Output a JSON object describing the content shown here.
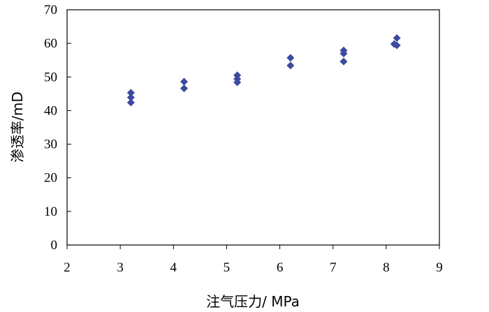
{
  "chart_data": {
    "type": "scatter",
    "title": "",
    "xlabel": "注气压力/ MPa",
    "ylabel": "渗透率/mD",
    "xlim": [
      2,
      9
    ],
    "ylim": [
      0,
      70
    ],
    "x_ticks": [
      "2",
      "3",
      "4",
      "5",
      "6",
      "7",
      "8",
      "9"
    ],
    "y_ticks": [
      "0",
      "10",
      "20",
      "30",
      "40",
      "50",
      "60",
      "70"
    ],
    "grid": false,
    "legend": "none",
    "marker": "diamond",
    "marker_color": "#3B4A9E",
    "series": [
      {
        "points": [
          {
            "x": 3.2,
            "y": 45.3
          },
          {
            "x": 3.2,
            "y": 43.9
          },
          {
            "x": 3.2,
            "y": 42.4
          },
          {
            "x": 4.2,
            "y": 48.6
          },
          {
            "x": 4.2,
            "y": 46.6
          },
          {
            "x": 5.2,
            "y": 50.5
          },
          {
            "x": 5.2,
            "y": 49.4
          },
          {
            "x": 5.2,
            "y": 48.4
          },
          {
            "x": 6.2,
            "y": 55.7
          },
          {
            "x": 6.2,
            "y": 53.4
          },
          {
            "x": 7.2,
            "y": 57.9
          },
          {
            "x": 7.2,
            "y": 57.0
          },
          {
            "x": 7.2,
            "y": 54.6
          },
          {
            "x": 8.15,
            "y": 59.8
          },
          {
            "x": 8.2,
            "y": 61.6
          },
          {
            "x": 8.2,
            "y": 59.4
          }
        ]
      }
    ]
  }
}
